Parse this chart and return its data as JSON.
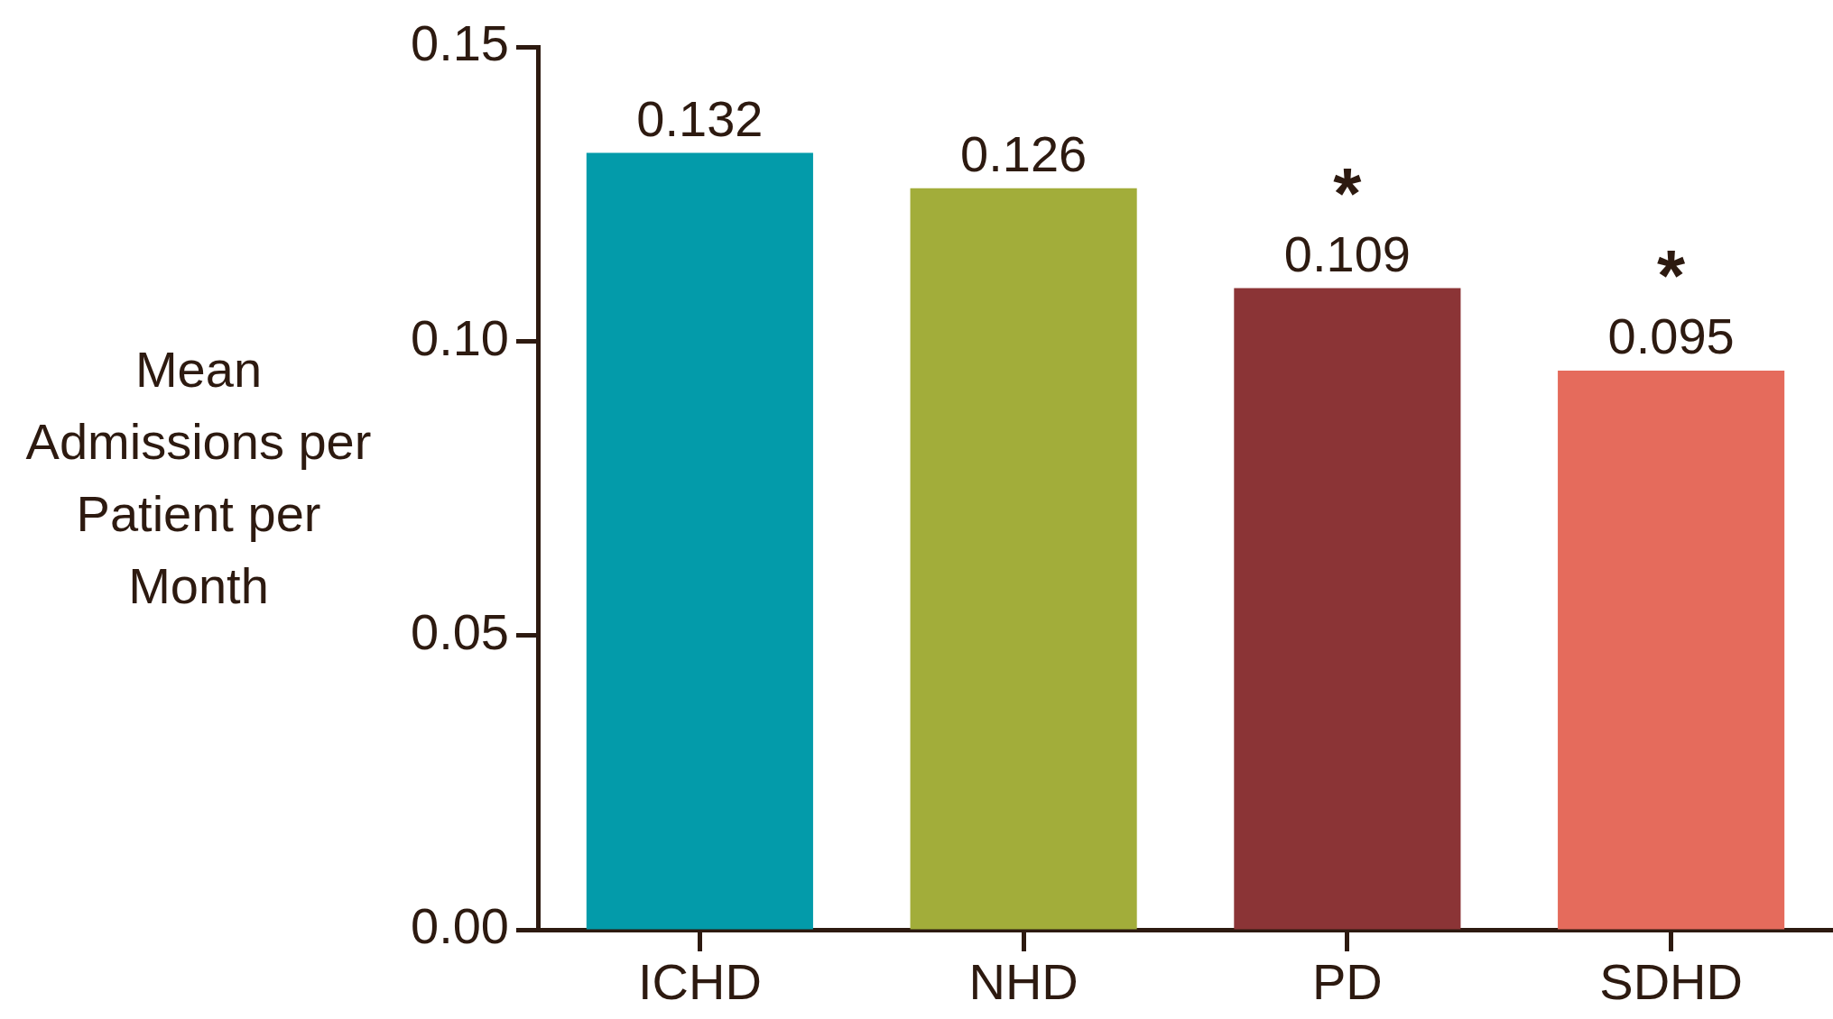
{
  "chart_data": {
    "type": "bar",
    "ylabel": "Mean Admissions per Patient per Month",
    "categories": [
      "ICHD",
      "NHD",
      "PD",
      "SDHD"
    ],
    "values": [
      0.132,
      0.126,
      0.109,
      0.095
    ],
    "colors": [
      "#039baa",
      "#a2ad3a",
      "#8b3436",
      "#e56b5c"
    ],
    "ylim": [
      0,
      0.15
    ],
    "yticks": [
      {
        "value": 0,
        "label": "0.00"
      },
      {
        "value": 0.05,
        "label": "0.05"
      },
      {
        "value": 0.1,
        "label": "0.10"
      },
      {
        "value": 0.15,
        "label": "0.15"
      }
    ],
    "data_labels": true,
    "annotations": [
      {
        "text": "*",
        "x": "PD",
        "y": 0.109
      },
      {
        "text": "*",
        "x": "SDHD",
        "y": 0.095
      }
    ]
  }
}
